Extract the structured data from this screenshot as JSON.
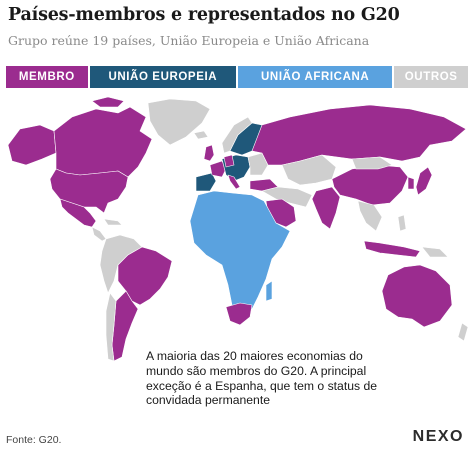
{
  "header": {
    "title": "Países-membros e representados no G20",
    "subtitle": "Grupo reúne 19 países, União Europeia e União Africana"
  },
  "legend": {
    "items": [
      {
        "label": "MEMBRO",
        "color": "#9b2c8f"
      },
      {
        "label": "UNIÃO EUROPEIA",
        "color": "#1f587a"
      },
      {
        "label": "UNIÃO AFRICANA",
        "color": "#5aa2df"
      },
      {
        "label": "OUTROS",
        "color": "#cfcfcf"
      }
    ]
  },
  "map": {
    "categories": {
      "membro": [
        "Estados Unidos",
        "Canadá",
        "México",
        "Brasil",
        "Argentina",
        "Reino Unido",
        "França",
        "Alemanha",
        "Itália",
        "Rússia",
        "Turquia",
        "Arábia Saudita",
        "Índia",
        "China",
        "Japão",
        "Coreia do Sul",
        "Indonésia",
        "Austrália",
        "África do Sul"
      ],
      "uniao_europeia": [
        "Espanha",
        "Portugal",
        "Polônia",
        "Suécia",
        "Finlândia",
        "Países Bálticos",
        "Europa Central"
      ],
      "uniao_africana": [
        "Países africanos"
      ],
      "outros": [
        "Demais países"
      ]
    }
  },
  "annotation": "A maioria das 20 maiores economias do mundo são membros do G20. A principal exceção é a Espanha, que tem o status de convidada permanente",
  "footer": {
    "source": "Fonte: G20.",
    "logo": "NEXO"
  }
}
